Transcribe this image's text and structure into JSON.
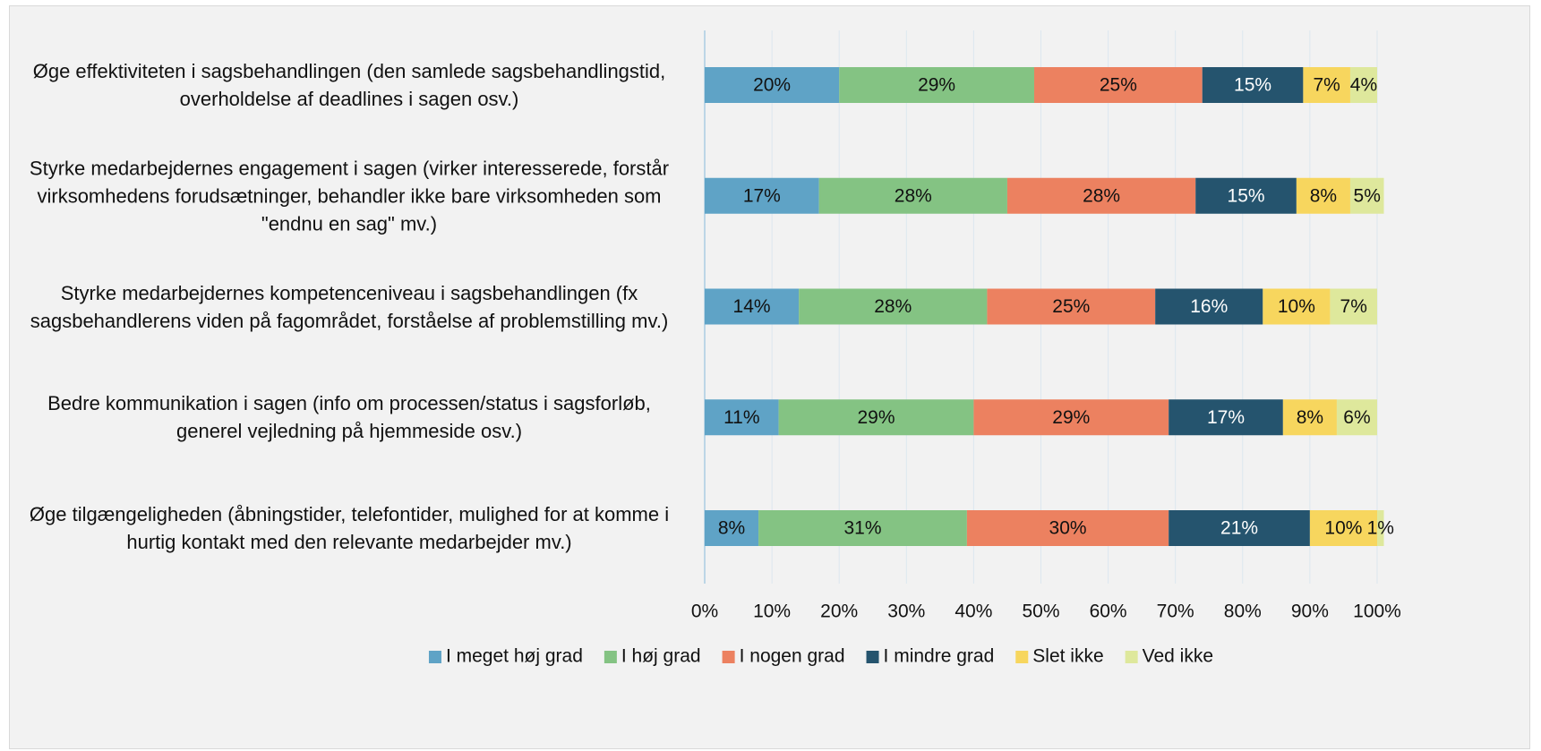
{
  "chart_data": {
    "type": "stacked-barh",
    "categories": [
      "Øge effektiviteten i sagsbehandlingen (den samlede sagsbehandlingstid, overholdelse af deadlines i sagen osv.)",
      "Styrke medarbejdernes engagement i sagen (virker interesserede, forstår virksomhedens forudsætninger, behandler ikke bare virksomheden som \"endnu en sag\" mv.)",
      "Styrke medarbejdernes kompetenceniveau i sagsbehandlingen (fx sagsbehandlerens viden på fagområdet, forståelse af problemstilling mv.)",
      "Bedre kommunikation i sagen (info om processen/status i sagsforløb, generel vejledning på hjemmeside osv.)",
      "Øge tilgængeligheden (åbningstider, telefontider, mulighed for at komme i hurtig kontakt med den relevante medarbejder mv.)"
    ],
    "series": [
      {
        "name": "I meget høj grad",
        "color": "#5fa3c6",
        "values": [
          20,
          17,
          14,
          11,
          8
        ],
        "value_labels": [
          "20%",
          "17%",
          "14%",
          "11%",
          "8%"
        ]
      },
      {
        "name": "I høj grad",
        "color": "#84c383",
        "values": [
          29,
          28,
          28,
          29,
          31
        ],
        "value_labels": [
          "29%",
          "28%",
          "28%",
          "29%",
          "31%"
        ]
      },
      {
        "name": "I nogen grad",
        "color": "#ec8160",
        "values": [
          25,
          28,
          25,
          29,
          30
        ],
        "value_labels": [
          "25%",
          "28%",
          "25%",
          "29%",
          "30%"
        ]
      },
      {
        "name": "I mindre grad",
        "color": "#25546e",
        "values": [
          15,
          15,
          16,
          17,
          21
        ],
        "value_labels": [
          "15%",
          "15%",
          "16%",
          "17%",
          "21%"
        ]
      },
      {
        "name": "Slet ikke",
        "color": "#f7d65e",
        "values": [
          7,
          8,
          10,
          8,
          10
        ],
        "value_labels": [
          "7%",
          "8%",
          "10%",
          "8%",
          "10%"
        ]
      },
      {
        "name": "Ved ikke",
        "color": "#dee89c",
        "values": [
          4,
          5,
          7,
          6,
          1
        ],
        "value_labels": [
          "4%",
          "5%",
          "7%",
          "6%",
          "1%"
        ]
      }
    ],
    "xlim": [
      0,
      100
    ],
    "xticks": [
      {
        "value": 0,
        "label": "0%"
      },
      {
        "value": 10,
        "label": "10%"
      },
      {
        "value": 20,
        "label": "20%"
      },
      {
        "value": 30,
        "label": "30%"
      },
      {
        "value": 40,
        "label": "40%"
      },
      {
        "value": 50,
        "label": "50%"
      },
      {
        "value": 60,
        "label": "60%"
      },
      {
        "value": 70,
        "label": "70%"
      },
      {
        "value": 80,
        "label": "80%"
      },
      {
        "value": 90,
        "label": "90%"
      },
      {
        "value": 100,
        "label": "100%"
      }
    ],
    "grid": true,
    "legend": "bottom"
  }
}
